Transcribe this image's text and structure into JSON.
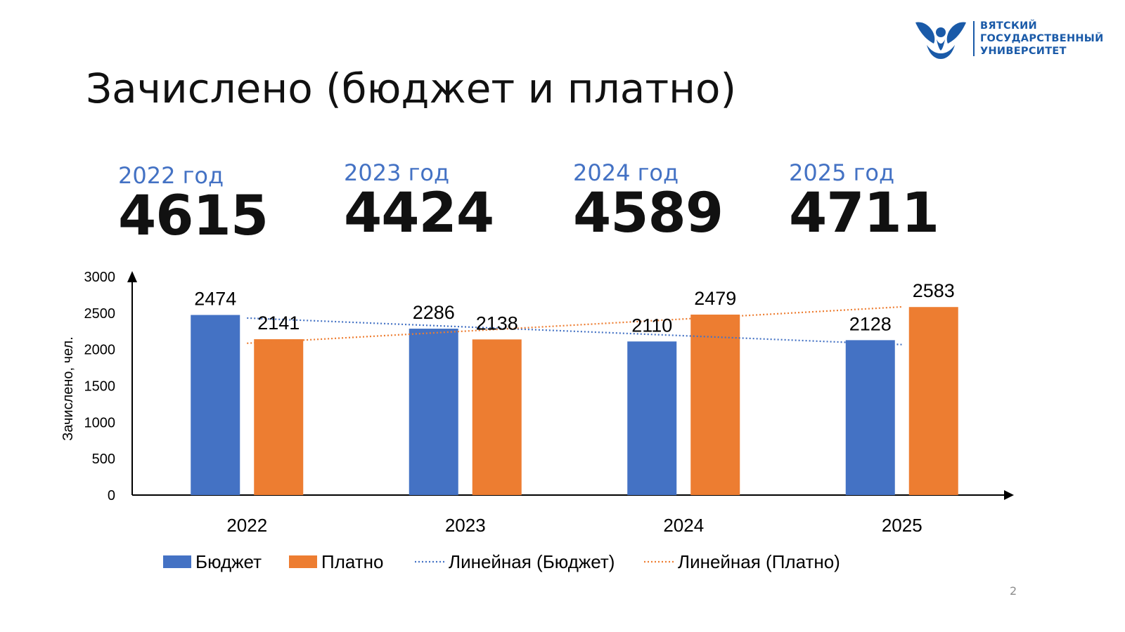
{
  "logo": {
    "lines": [
      "ВЯТСКИЙ",
      "ГОСУДАРСТВЕННЫЙ",
      "УНИВЕРСИТЕТ"
    ],
    "color": "#1a5aa8"
  },
  "title": "Зачислено (бюджет и платно)",
  "stats": [
    {
      "year": "2022 год",
      "total": "4615"
    },
    {
      "year": "2023 год",
      "total": "4424"
    },
    {
      "year": "2024 год",
      "total": "4589"
    },
    {
      "year": "2025 год",
      "total": "4711"
    }
  ],
  "chart_data": {
    "type": "bar",
    "categories": [
      "2022",
      "2023",
      "2024",
      "2025"
    ],
    "series": [
      {
        "name": "Бюджет",
        "values": [
          2474,
          2286,
          2110,
          2128
        ],
        "color": "#4472c4"
      },
      {
        "name": "Платно",
        "values": [
          2141,
          2138,
          2479,
          2583
        ],
        "color": "#ed7d31"
      }
    ],
    "trendlines": [
      {
        "name": "Линейная (Бюджет)",
        "series": "Бюджет",
        "style": "dotted",
        "color": "#4472c4"
      },
      {
        "name": "Линейная (Платно)",
        "series": "Платно",
        "style": "dotted",
        "color": "#ed7d31"
      }
    ],
    "ylabel": "Зачислено, чел.",
    "xlabel": "",
    "ylim": [
      0,
      3000
    ],
    "yticks": [
      0,
      500,
      1000,
      1500,
      2000,
      2500,
      3000
    ],
    "grid": false,
    "legend": "bottom"
  },
  "page_number": "2"
}
